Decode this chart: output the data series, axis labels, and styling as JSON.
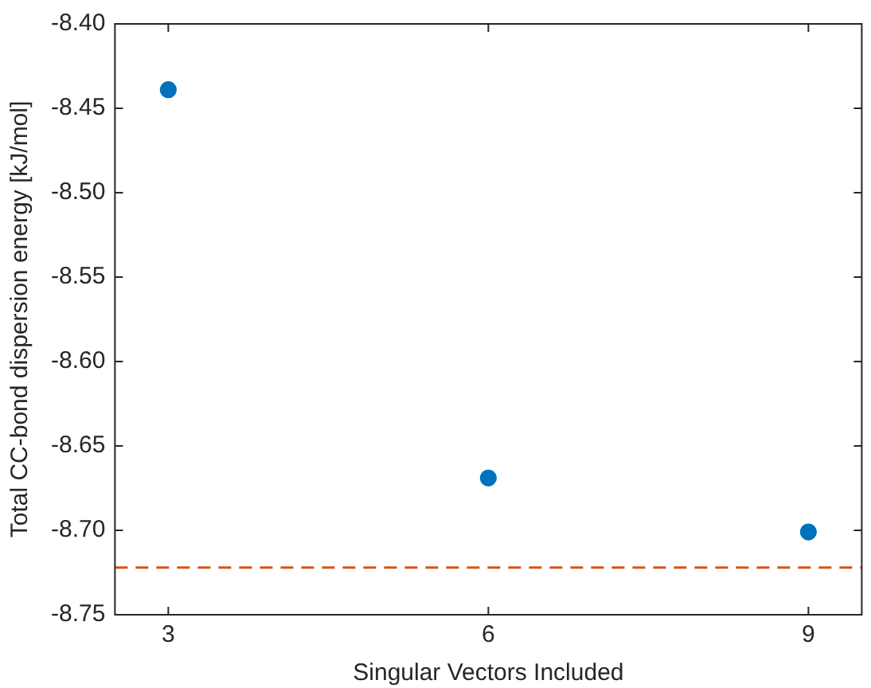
{
  "chart_data": {
    "type": "scatter",
    "xlabel": "Singular Vectors Included",
    "ylabel": "Total CC-bond dispersion energy [kJ/mol]",
    "x": [
      3,
      6,
      9
    ],
    "series": [
      {
        "color": "#0072bd",
        "values": [
          -8.439,
          -8.669,
          -8.701
        ]
      }
    ],
    "xlim": [
      2.5,
      9.5
    ],
    "xticks": [
      3,
      6,
      9
    ],
    "ylim": [
      -8.75,
      -8.4
    ],
    "yticks": [
      {
        "value": -8.75,
        "label": "-8.75"
      },
      {
        "value": -8.7,
        "label": "-8.70"
      },
      {
        "value": -8.65,
        "label": "-8.65"
      },
      {
        "value": -8.6,
        "label": "-8.60"
      },
      {
        "value": -8.55,
        "label": "-8.55"
      },
      {
        "value": -8.5,
        "label": "-8.50"
      },
      {
        "value": -8.45,
        "label": "-8.45"
      },
      {
        "value": -8.4,
        "label": "-8.40"
      }
    ],
    "ref_lines": [
      {
        "axis": "y",
        "value": -8.722,
        "color": "#d95319",
        "line_style": "dashed"
      }
    ],
    "grid": false,
    "legend": false,
    "marker": "circle"
  }
}
